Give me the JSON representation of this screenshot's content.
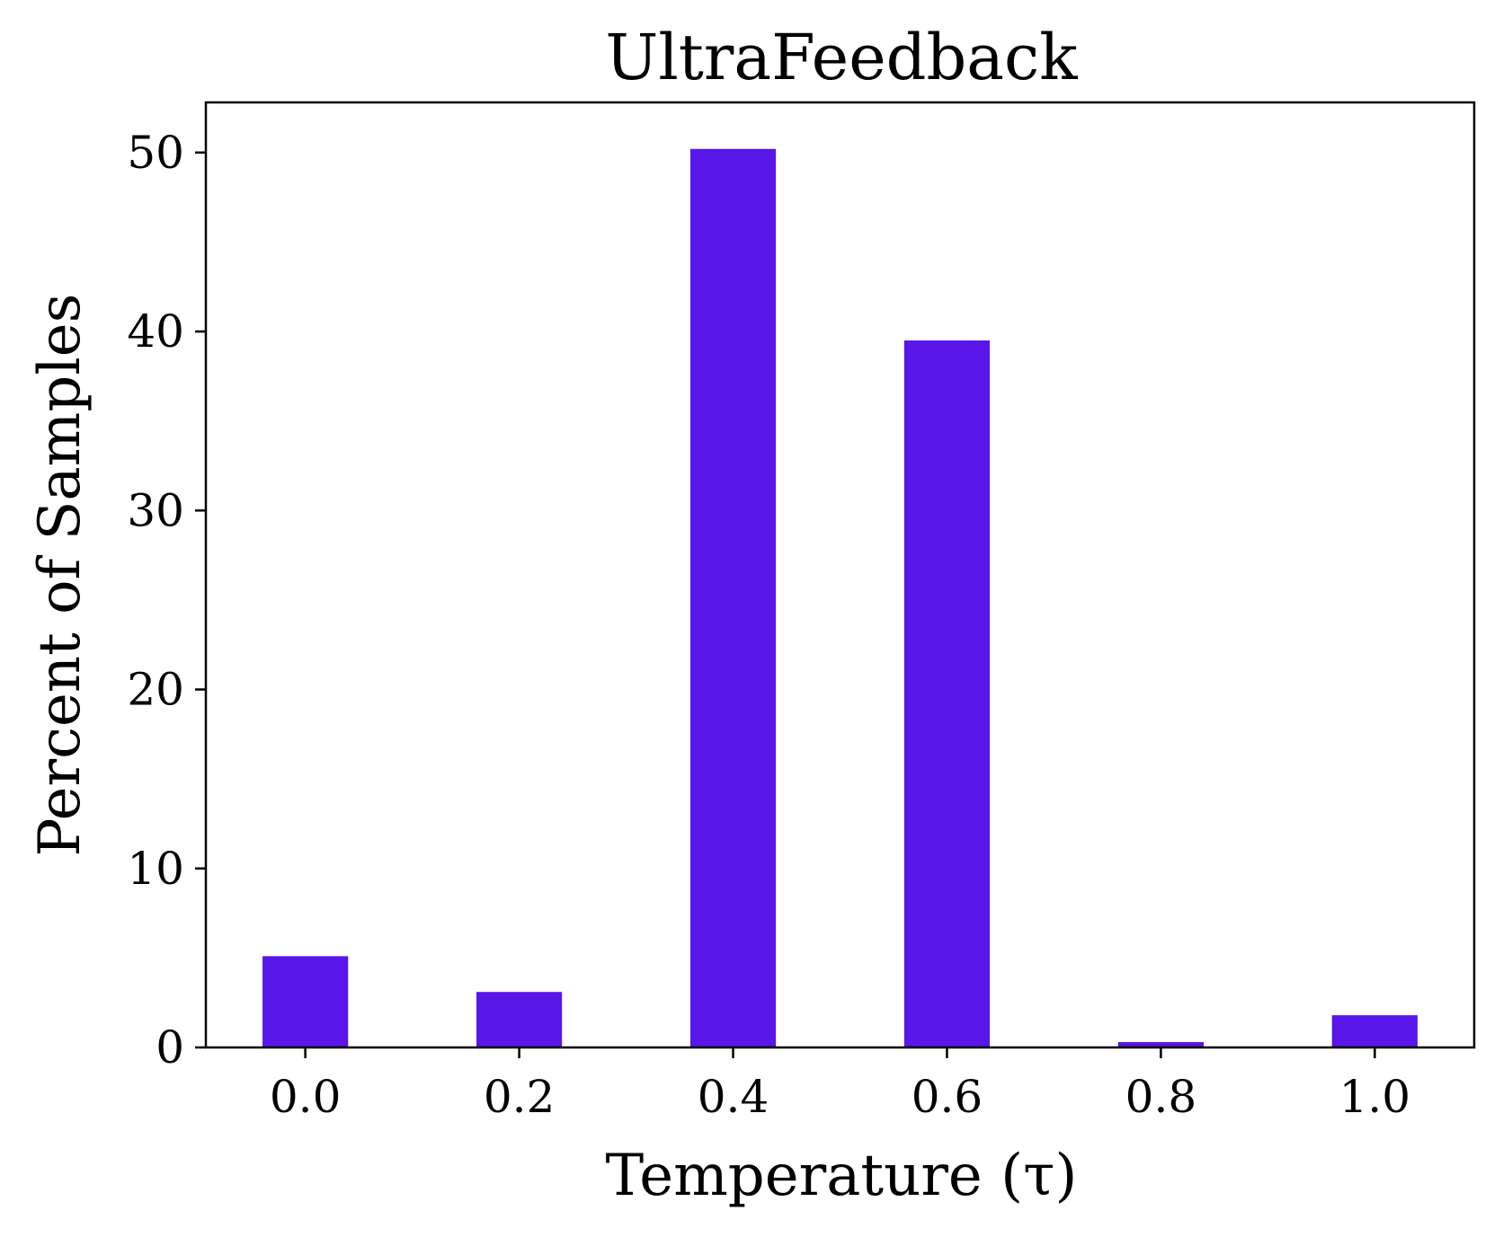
{
  "chart_data": {
    "type": "bar",
    "title": "UltraFeedback",
    "xlabel": "Temperature (τ)",
    "ylabel": "Percent of Samples",
    "categories": [
      "0.0",
      "0.2",
      "0.4",
      "0.6",
      "0.8",
      "1.0"
    ],
    "x": [
      0.0,
      0.2,
      0.4,
      0.6,
      0.8,
      1.0
    ],
    "values": [
      5.1,
      3.1,
      50.2,
      39.5,
      0.3,
      1.8
    ],
    "xlim": [
      -0.093,
      1.093
    ],
    "ylim": [
      0,
      52.8
    ],
    "yticks": [
      0,
      10,
      20,
      30,
      40,
      50
    ],
    "ytick_labels": [
      "0",
      "10",
      "20",
      "30",
      "40",
      "50"
    ],
    "bar_width_data": 0.08,
    "grid": false,
    "legend": "none",
    "bar_color": "#5816e8"
  }
}
